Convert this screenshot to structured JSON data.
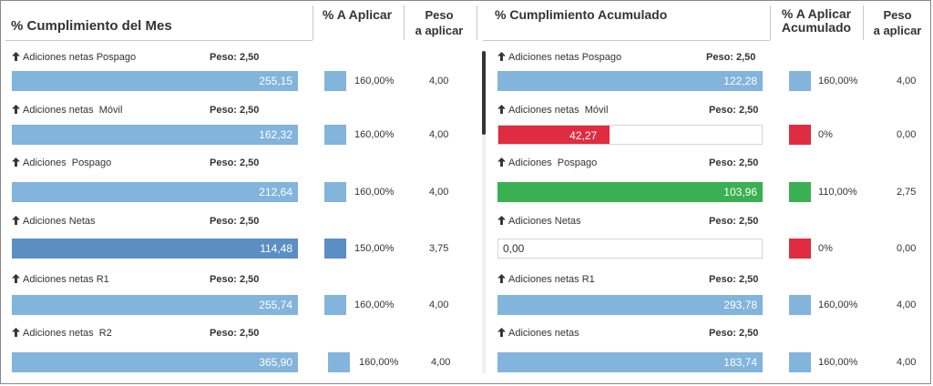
{
  "colors": {
    "light_blue": "#82b4dc",
    "dark_blue": "#5b8fc4",
    "red": "#df2c40",
    "green": "#3ab052"
  },
  "headers": {
    "left_title": "% Cumplimiento del Mes",
    "left_pct": "% A Aplicar",
    "left_peso_1": "Peso",
    "left_peso_2": "a aplicar",
    "right_title": "% Cumplimiento Acumulado",
    "right_pct_1": "% A Aplicar",
    "right_pct_2": "Acumulado",
    "right_peso_1": "Peso",
    "right_peso_2": "a aplicar"
  },
  "left_rows": [
    {
      "label": "Adiciones netas Pospago",
      "peso": "Peso: 2,50",
      "value": "255,15",
      "pct": "160,00%",
      "weight": "4,00",
      "color": "light_blue"
    },
    {
      "label": "Adiciones netas  Móvil",
      "peso": "Peso: 2,50",
      "value": "162,32",
      "pct": "160,00%",
      "weight": "4,00",
      "color": "light_blue"
    },
    {
      "label": "Adiciones  Pospago",
      "peso": "Peso: 2,50",
      "value": "212,64",
      "pct": "160,00%",
      "weight": "4,00",
      "color": "light_blue"
    },
    {
      "label": "Adiciones Netas",
      "peso": "Peso: 2,50",
      "value": "114,48",
      "pct": "150,00%",
      "weight": "3,75",
      "color": "dark_blue"
    },
    {
      "label": "Adiciones netas R1",
      "peso": "Peso: 2,50",
      "value": "255,74",
      "pct": "160,00%",
      "weight": "4,00",
      "color": "light_blue"
    },
    {
      "label": "Adiciones netas  R2",
      "peso": "Peso: 2,50",
      "value": "365,90",
      "pct": "160,00%",
      "weight": "4,00",
      "color": "light_blue"
    }
  ],
  "right_rows": [
    {
      "label": "Adiciones netas Pospago",
      "peso": "Peso: 2,50",
      "value": "122,28",
      "fill": 1.0,
      "pct": "160,00%",
      "weight": "4,00",
      "color": "light_blue"
    },
    {
      "label": "Adiciones netas  Móvil",
      "peso": "Peso: 2,50",
      "value": "42,27",
      "fill": 0.4227,
      "pct": "0%",
      "weight": "0,00",
      "color": "red"
    },
    {
      "label": "Adiciones  Pospago",
      "peso": "Peso: 2,50",
      "value": "103,96",
      "fill": 1.0,
      "pct": "110,00%",
      "weight": "2,75",
      "color": "green"
    },
    {
      "label": "Adiciones Netas",
      "peso": "Peso: 2,50",
      "value": "0,00",
      "fill": 0,
      "pct": "0%",
      "weight": "0,00",
      "color": "red"
    },
    {
      "label": "Adiciones netas R1",
      "peso": "Peso: 2,50",
      "value": "293,78",
      "fill": 1.0,
      "pct": "160,00%",
      "weight": "4,00",
      "color": "light_blue"
    },
    {
      "label": "Adiciones netas",
      "peso": "Peso: 2,50",
      "value": "183,74",
      "fill": 1.0,
      "pct": "160,00%",
      "weight": "4,00",
      "color": "light_blue"
    }
  ]
}
